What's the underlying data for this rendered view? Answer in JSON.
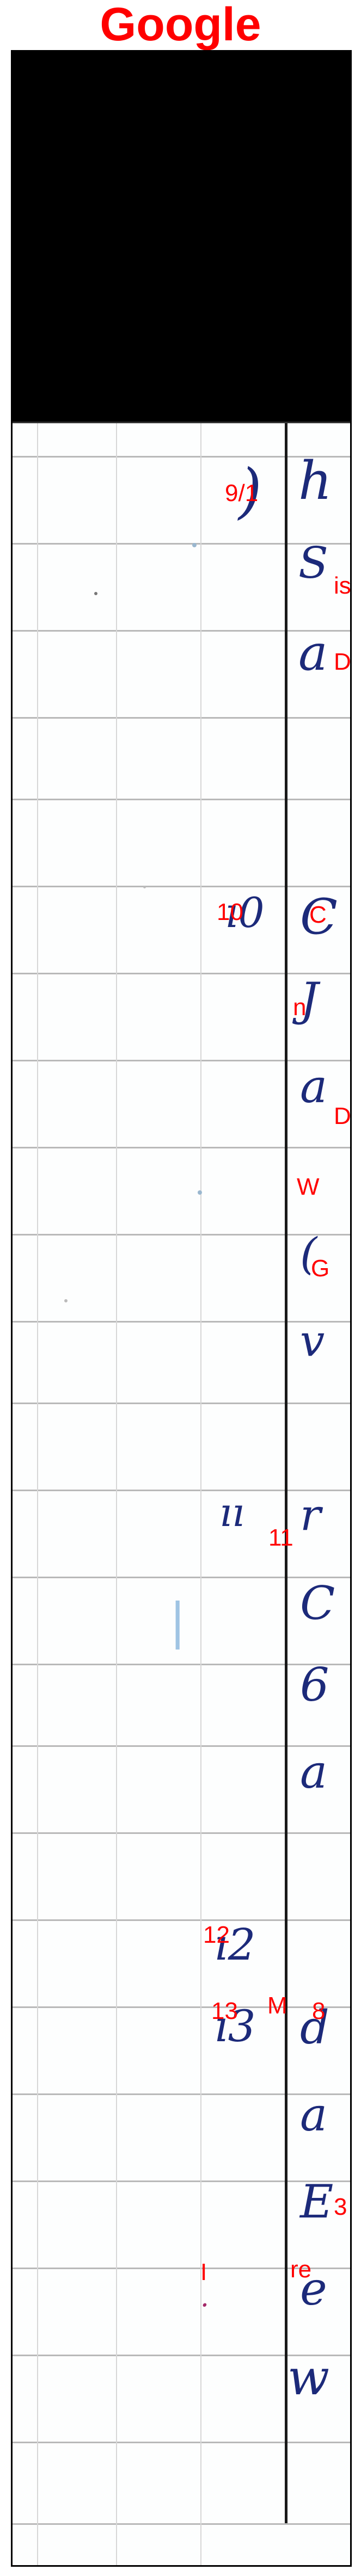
{
  "page_title": "Google",
  "labels": {
    "date_9_1": "9/1",
    "is": "is",
    "d1": "D",
    "n10": "10",
    "c": "C",
    "n": "n",
    "d2": "D",
    "w": "W",
    "g": "G",
    "n11": "11",
    "n12": "12",
    "n13": "13",
    "m": "M",
    "n8": "8",
    "n3": "3",
    "re": "re",
    "i": "I"
  },
  "colors": {
    "title": "#ff0000",
    "labels": "#ff0000",
    "ink": "#1c2a7a",
    "grid": "#b9b9b9",
    "frame": "#000000"
  }
}
